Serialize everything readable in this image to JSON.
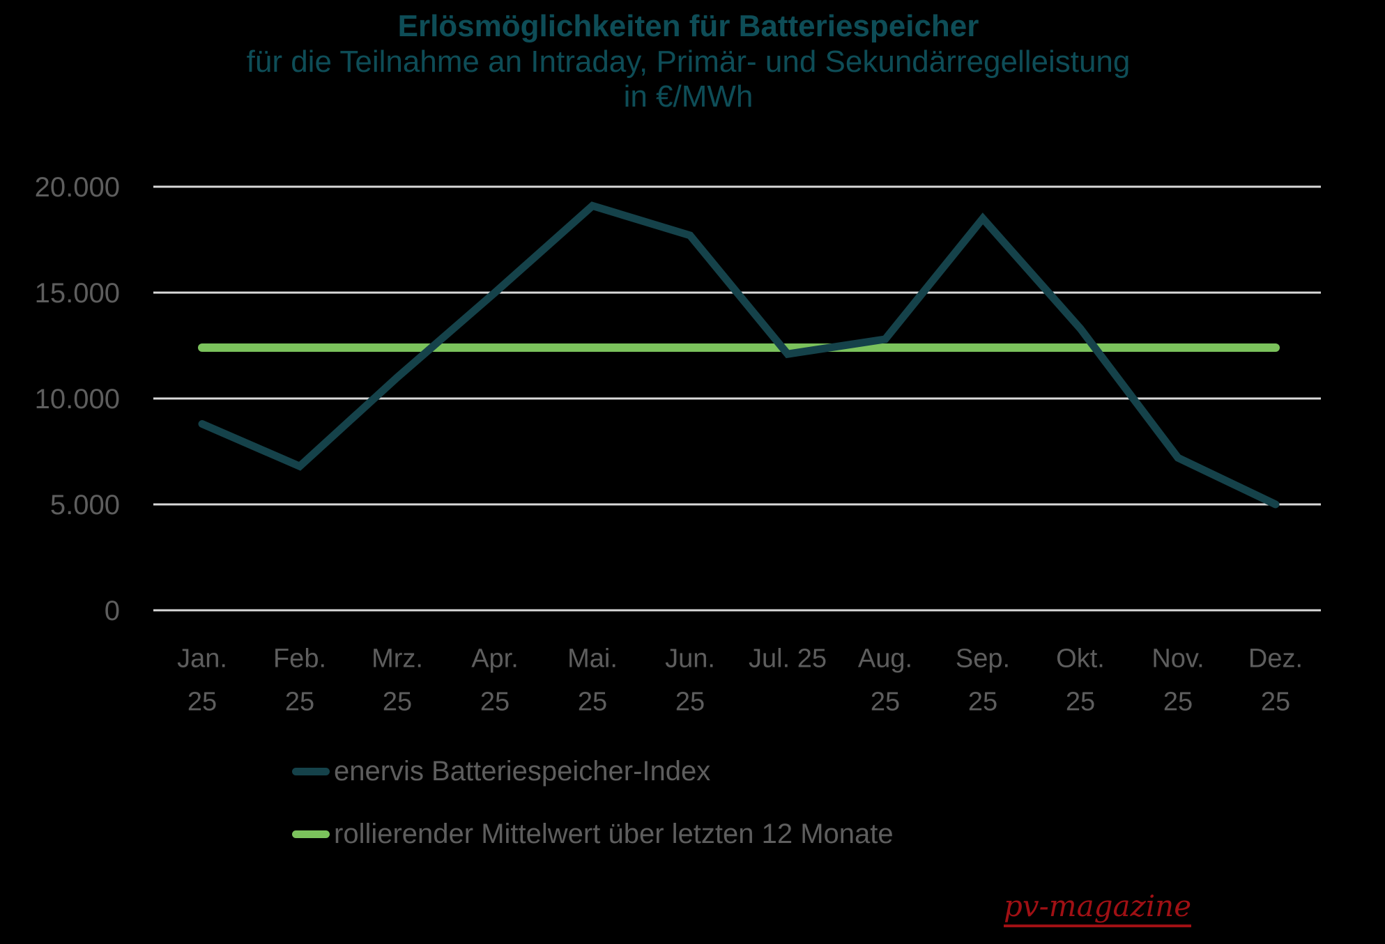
{
  "page": {
    "background": "#000000"
  },
  "titles": {
    "main": "Erlösmöglichkeiten für Batteriespeicher",
    "sub1": "für die Teilnahme an Intraday, Primär- und Sekundärregelleistung",
    "sub2": "in €/MWh",
    "color": "#0e4d57"
  },
  "chart_data": {
    "type": "line",
    "categories": [
      {
        "month": "Jan.",
        "year": "25"
      },
      {
        "month": "Feb.",
        "year": "25"
      },
      {
        "month": "Mrz.",
        "year": "25"
      },
      {
        "month": "Apr.",
        "year": "25"
      },
      {
        "month": "Mai.",
        "year": "25"
      },
      {
        "month": "Jun.",
        "year": "25"
      },
      {
        "month": "Jul. 25",
        "year": ""
      },
      {
        "month": "Aug.",
        "year": "25"
      },
      {
        "month": "Sep.",
        "year": "25"
      },
      {
        "month": "Okt.",
        "year": "25"
      },
      {
        "month": "Nov.",
        "year": "25"
      },
      {
        "month": "Dez.",
        "year": "25"
      }
    ],
    "series": [
      {
        "name": "rollierender Mittelwert über letzten 12 Monate",
        "color": "#7bc25c",
        "stroke_width": 12,
        "values": [
          12400,
          12400,
          12400,
          12400,
          12400,
          12400,
          12400,
          12400,
          12400,
          12400,
          12400,
          12400
        ]
      },
      {
        "name": "enervis Batteriespeicher-Index",
        "color": "#15424a",
        "stroke_width": 11,
        "values": [
          8800,
          6800,
          11000,
          15000,
          19100,
          17700,
          12100,
          12800,
          18500,
          13300,
          7200,
          5000
        ]
      }
    ],
    "yticks": [
      {
        "value": 0,
        "label": "0"
      },
      {
        "value": 5000,
        "label": "5.000"
      },
      {
        "value": 10000,
        "label": "10.000"
      },
      {
        "value": 15000,
        "label": "15.000"
      },
      {
        "value": 20000,
        "label": "20.000"
      }
    ],
    "ylim": [
      0,
      20000
    ],
    "grid": true,
    "gridline_color": "#d9d9d9",
    "axis_text_color": "#5e5e5e",
    "legend_position": "bottom-left"
  },
  "legend": {
    "items": [
      {
        "label": "enervis Batteriespeicher-Index",
        "color": "#15424a"
      },
      {
        "label": "rollierender Mittelwert über letzten 12 Monate",
        "color": "#7bc25c"
      }
    ]
  },
  "footer": {
    "credit": "pv-magazine",
    "color": "#a01014"
  }
}
